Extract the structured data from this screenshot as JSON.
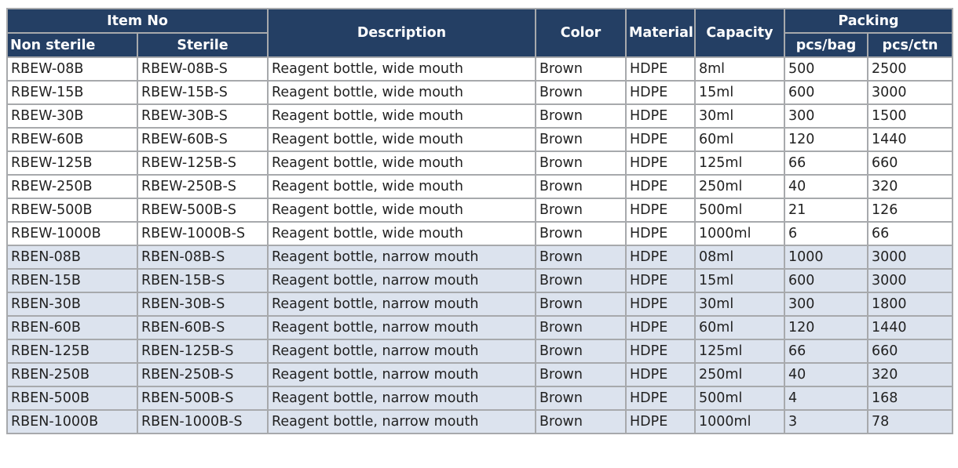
{
  "headers": {
    "item_no": "Item No",
    "non_sterile": "Non sterile",
    "sterile": "Sterile",
    "description": "Description",
    "color": "Color",
    "material": "Material",
    "capacity": "Capacity",
    "packing": "Packing",
    "pcs_bag": "pcs/bag",
    "pcs_ctn": "pcs/ctn"
  },
  "rows": [
    [
      "RBEW-08B",
      "RBEW-08B-S",
      "Reagent bottle, wide mouth",
      "Brown",
      "HDPE",
      "8ml",
      "500",
      "2500"
    ],
    [
      "RBEW-15B",
      "RBEW-15B-S",
      "Reagent bottle, wide mouth",
      "Brown",
      "HDPE",
      "15ml",
      "600",
      "3000"
    ],
    [
      "RBEW-30B",
      "RBEW-30B-S",
      "Reagent bottle, wide mouth",
      "Brown",
      "HDPE",
      "30ml",
      "300",
      "1500"
    ],
    [
      "RBEW-60B",
      "RBEW-60B-S",
      "Reagent bottle, wide mouth",
      "Brown",
      "HDPE",
      "60ml",
      "120",
      "1440"
    ],
    [
      "RBEW-125B",
      "RBEW-125B-S",
      "Reagent bottle, wide mouth",
      "Brown",
      "HDPE",
      "125ml",
      "66",
      "660"
    ],
    [
      "RBEW-250B",
      "RBEW-250B-S",
      "Reagent bottle, wide mouth",
      "Brown",
      "HDPE",
      "250ml",
      "40",
      "320"
    ],
    [
      "RBEW-500B",
      "RBEW-500B-S",
      "Reagent bottle, wide mouth",
      "Brown",
      "HDPE",
      "500ml",
      "21",
      "126"
    ],
    [
      "RBEW-1000B",
      "RBEW-1000B-S",
      "Reagent bottle, wide mouth",
      "Brown",
      "HDPE",
      "1000ml",
      "6",
      "66"
    ],
    [
      "RBEN-08B",
      "RBEN-08B-S",
      "Reagent bottle, narrow mouth",
      "Brown",
      "HDPE",
      "08ml",
      "1000",
      "3000"
    ],
    [
      "RBEN-15B",
      "RBEN-15B-S",
      "Reagent bottle, narrow mouth",
      "Brown",
      "HDPE",
      "15ml",
      "600",
      "3000"
    ],
    [
      "RBEN-30B",
      "RBEN-30B-S",
      "Reagent bottle, narrow mouth",
      "Brown",
      "HDPE",
      "30ml",
      "300",
      "1800"
    ],
    [
      "RBEN-60B",
      "RBEN-60B-S",
      "Reagent bottle, narrow mouth",
      "Brown",
      "HDPE",
      "60ml",
      "120",
      "1440"
    ],
    [
      "RBEN-125B",
      "RBEN-125B-S",
      "Reagent bottle, narrow mouth",
      "Brown",
      "HDPE",
      "125ml",
      "66",
      "660"
    ],
    [
      "RBEN-250B",
      "RBEN-250B-S",
      "Reagent bottle, narrow mouth",
      "Brown",
      "HDPE",
      "250ml",
      "40",
      "320"
    ],
    [
      "RBEN-500B",
      "RBEN-500B-S",
      "Reagent bottle, narrow mouth",
      "Brown",
      "HDPE",
      "500ml",
      "4",
      "168"
    ],
    [
      "RBEN-1000B",
      "RBEN-1000B-S",
      "Reagent bottle, narrow mouth",
      "Brown",
      "HDPE",
      "1000ml",
      "3",
      "78"
    ]
  ],
  "colors": {
    "header_bg": "#243f64",
    "header_text": "#ffffff",
    "wide_mouth_row_bg": "#ffffff",
    "narrow_mouth_row_bg": "#dce3ee",
    "border": "#a7a9ac"
  }
}
